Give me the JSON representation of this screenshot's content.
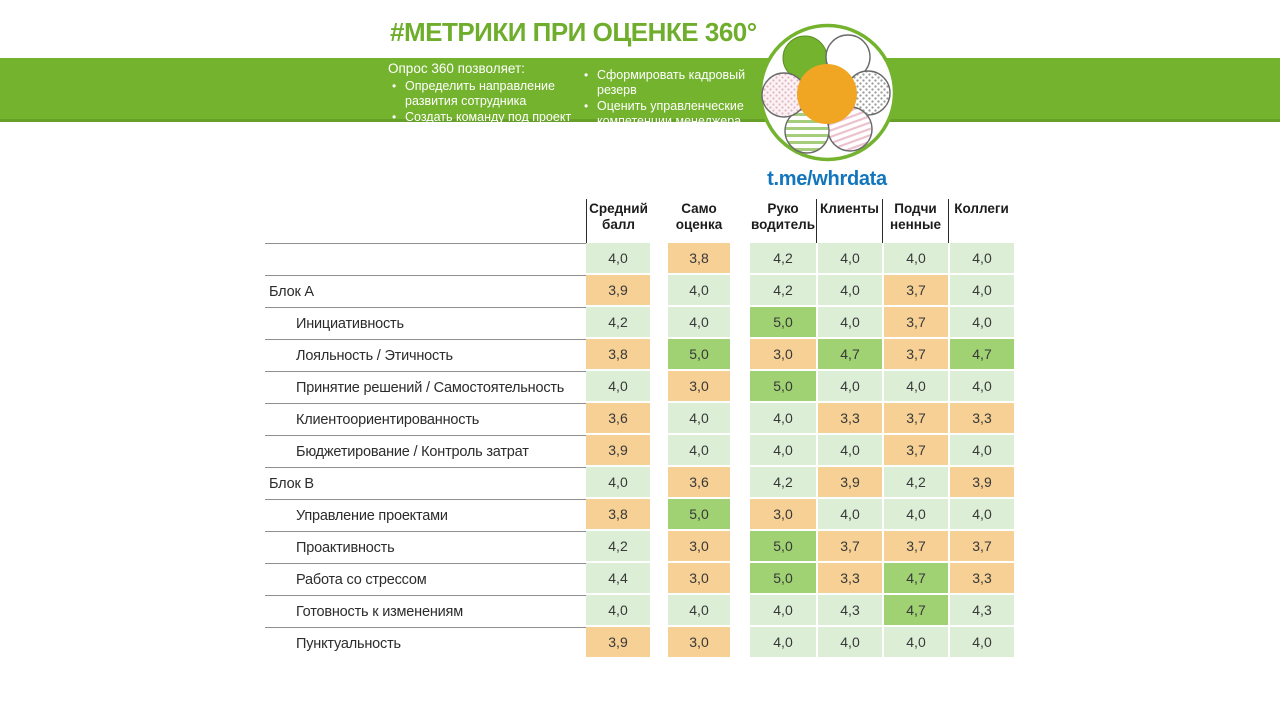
{
  "page": {
    "title": "#МЕТРИКИ ПРИ ОЦЕНКЕ 360°",
    "telegram_link": "t.me/whrdata"
  },
  "banner": {
    "heading": "Опрос 360 позволяет:",
    "left_bullets": [
      "Определить направление развития сотрудника",
      "Создать команду под проект"
    ],
    "right_bullets": [
      "Сформировать кадровый резерв",
      "Оценить управленческие компетенции менеджера"
    ]
  },
  "logo": {
    "description": "flower-with-six-petals",
    "center_color": "#f0a623",
    "solid_petal_color": "#74b32e",
    "ring_color": "#74b32e"
  },
  "colors": {
    "band_green": "#74b32e",
    "title_green": "#6fae2c",
    "link_blue": "#1376bd",
    "score_high": "#a0d273",
    "score_mid": "#ddeed6",
    "score_low": "#f6d095"
  },
  "table": {
    "columns": [
      "Средний балл",
      "Само оценка",
      "Руко водитель",
      "Клиенты",
      "Подчи ненные",
      "Коллеги"
    ],
    "thresholds": {
      "high_min": 4.5,
      "mid_min": 4.0
    },
    "rows": [
      {
        "label": "",
        "group": true,
        "values": [
          "4,0",
          "3,8",
          "4,2",
          "4,0",
          "4,0",
          "4,0"
        ]
      },
      {
        "label": "Блок А",
        "group": true,
        "values": [
          "3,9",
          "4,0",
          "4,2",
          "4,0",
          "3,7",
          "4,0"
        ]
      },
      {
        "label": "Инициативность",
        "group": false,
        "values": [
          "4,2",
          "4,0",
          "5,0",
          "4,0",
          "3,7",
          "4,0"
        ]
      },
      {
        "label": "Лояльность / Этичность",
        "group": false,
        "values": [
          "3,8",
          "5,0",
          "3,0",
          "4,7",
          "3,7",
          "4,7"
        ]
      },
      {
        "label": "Принятие решений / Самостоятельность",
        "group": false,
        "values": [
          "4,0",
          "3,0",
          "5,0",
          "4,0",
          "4,0",
          "4,0"
        ]
      },
      {
        "label": "Клиентоориентированность",
        "group": false,
        "values": [
          "3,6",
          "4,0",
          "4,0",
          "3,3",
          "3,7",
          "3,3"
        ]
      },
      {
        "label": "Бюджетирование / Контроль затрат",
        "group": false,
        "values": [
          "3,9",
          "4,0",
          "4,0",
          "4,0",
          "3,7",
          "4,0"
        ]
      },
      {
        "label": "Блок В",
        "group": true,
        "values": [
          "4,0",
          "3,6",
          "4,2",
          "3,9",
          "4,2",
          "3,9"
        ]
      },
      {
        "label": "Управление проектами",
        "group": false,
        "values": [
          "3,8",
          "5,0",
          "3,0",
          "4,0",
          "4,0",
          "4,0"
        ]
      },
      {
        "label": "Проактивность",
        "group": false,
        "values": [
          "4,2",
          "3,0",
          "5,0",
          "3,7",
          "3,7",
          "3,7"
        ]
      },
      {
        "label": "Работа со стрессом",
        "group": false,
        "values": [
          "4,4",
          "3,0",
          "5,0",
          "3,3",
          "4,7",
          "3,3"
        ]
      },
      {
        "label": "Готовность к изменениям",
        "group": false,
        "values": [
          "4,0",
          "4,0",
          "4,0",
          "4,3",
          "4,7",
          "4,3"
        ]
      },
      {
        "label": "Пунктуальность",
        "group": false,
        "values": [
          "3,9",
          "3,0",
          "4,0",
          "4,0",
          "4,0",
          "4,0"
        ]
      }
    ]
  }
}
